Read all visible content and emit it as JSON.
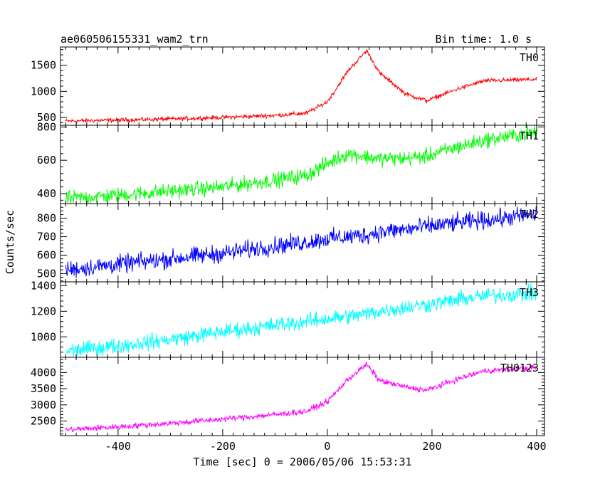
{
  "chart_data": {
    "type": "line",
    "title": "ae060506155331_wam2_trn",
    "bin_time_label": "Bin time: 1.0 s",
    "xlabel": "Time [sec] 0 = 2006/05/06 15:53:31",
    "ylabel": "Counts/sec",
    "xlim": [
      -510,
      415
    ],
    "xticks": [
      -400,
      -200,
      0,
      200,
      400
    ],
    "x_sample_points": [
      -500,
      -400,
      -300,
      -200,
      -100,
      -40,
      0,
      40,
      75,
      100,
      150,
      190,
      250,
      300,
      400
    ],
    "panels": [
      {
        "name": "TH0",
        "color": "#ff0000",
        "ylim": [
          350,
          1850
        ],
        "yticks": [
          500,
          1000,
          1500
        ],
        "values": [
          430,
          450,
          470,
          500,
          540,
          580,
          800,
          1400,
          1780,
          1350,
          950,
          820,
          1050,
          1200,
          1230
        ],
        "noise_amplitude": 25
      },
      {
        "name": "TH1",
        "color": "#00ff00",
        "ylim": [
          340,
          810
        ],
        "yticks": [
          400,
          600,
          800
        ],
        "values": [
          370,
          390,
          415,
          440,
          480,
          510,
          580,
          640,
          620,
          610,
          610,
          625,
          680,
          720,
          770
        ],
        "noise_amplitude": 28
      },
      {
        "name": "TH2",
        "color": "#0000ff",
        "ylim": [
          455,
          880
        ],
        "yticks": [
          500,
          600,
          700,
          800
        ],
        "values": [
          520,
          550,
          580,
          610,
          650,
          670,
          690,
          700,
          710,
          725,
          740,
          755,
          775,
          790,
          820
        ],
        "noise_amplitude": 30
      },
      {
        "name": "TH3",
        "color": "#00ffff",
        "ylim": [
          840,
          1430
        ],
        "yticks": [
          1000,
          1200,
          1400
        ],
        "values": [
          890,
          930,
          980,
          1040,
          1090,
          1120,
          1140,
          1160,
          1180,
          1200,
          1230,
          1250,
          1290,
          1320,
          1340
        ],
        "noise_amplitude": 38
      },
      {
        "name": "TH0123",
        "color": "#ff00ff",
        "ylim": [
          2050,
          4470
        ],
        "yticks": [
          2500,
          3000,
          3500,
          4000
        ],
        "values": [
          2230,
          2320,
          2430,
          2560,
          2700,
          2800,
          3100,
          3800,
          4250,
          3750,
          3550,
          3450,
          3800,
          4050,
          4150
        ],
        "noise_amplitude": 55
      }
    ]
  }
}
